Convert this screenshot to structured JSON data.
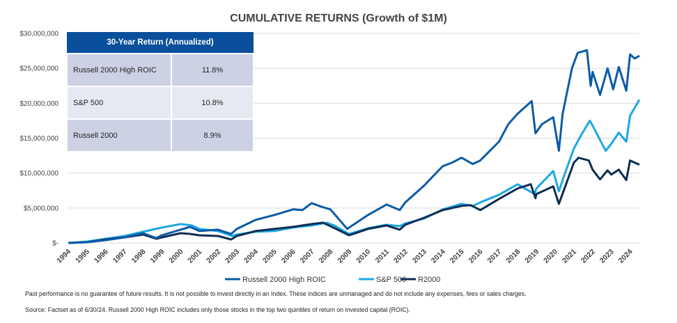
{
  "chart_data": {
    "type": "line",
    "title": "CUMULATIVE RETURNS (Growth of $1M)",
    "xlabel": "",
    "ylabel": "",
    "x_ticks": [
      "1994",
      "1995",
      "1996",
      "1997",
      "1998",
      "1999",
      "2000",
      "2001",
      "2002",
      "2003",
      "2004",
      "2005",
      "2006",
      "2007",
      "2008",
      "2009",
      "2010",
      "2011",
      "2012",
      "2013",
      "2014",
      "2015",
      "2016",
      "2017",
      "2018",
      "2019",
      "2020",
      "2021",
      "2022",
      "2023",
      "2024"
    ],
    "y_ticks": [
      {
        "value": 0,
        "label": "$-"
      },
      {
        "value": 5000000,
        "label": "$5,000,000"
      },
      {
        "value": 10000000,
        "label": "$10,000,000"
      },
      {
        "value": 15000000,
        "label": "$15,000,000"
      },
      {
        "value": 20000000,
        "label": "$20,000,000"
      },
      {
        "value": 25000000,
        "label": "$25,000,000"
      },
      {
        "value": 30000000,
        "label": "$30,000,000"
      }
    ],
    "ylim": [
      0,
      30000000
    ],
    "xlim": [
      1994,
      2024.5
    ],
    "grid": true,
    "legend_position": "bottom",
    "series": [
      {
        "name": "Russell 2000 High ROIC",
        "color": "#0b5aa5",
        "points": [
          [
            1994,
            0
          ],
          [
            1995,
            100000
          ],
          [
            1996,
            400000
          ],
          [
            1997,
            800000
          ],
          [
            1998,
            1400000
          ],
          [
            1998.7,
            700000
          ],
          [
            1999,
            1100000
          ],
          [
            2000,
            1900000
          ],
          [
            2000.5,
            2300000
          ],
          [
            2001,
            1700000
          ],
          [
            2002,
            1900000
          ],
          [
            2002.7,
            1300000
          ],
          [
            2003,
            2000000
          ],
          [
            2004,
            3300000
          ],
          [
            2005,
            4000000
          ],
          [
            2006,
            4800000
          ],
          [
            2006.5,
            4700000
          ],
          [
            2007,
            5700000
          ],
          [
            2007.5,
            5200000
          ],
          [
            2008,
            4800000
          ],
          [
            2008.9,
            2000000
          ],
          [
            2009,
            2200000
          ],
          [
            2010,
            4000000
          ],
          [
            2011,
            5500000
          ],
          [
            2011.7,
            4700000
          ],
          [
            2012,
            5800000
          ],
          [
            2013,
            8200000
          ],
          [
            2014,
            11000000
          ],
          [
            2014.5,
            11500000
          ],
          [
            2015,
            12200000
          ],
          [
            2015.6,
            11300000
          ],
          [
            2016,
            11800000
          ],
          [
            2017,
            14500000
          ],
          [
            2017.5,
            17000000
          ],
          [
            2018,
            18500000
          ],
          [
            2018.75,
            20300000
          ],
          [
            2018.95,
            15700000
          ],
          [
            2019.3,
            17000000
          ],
          [
            2019.9,
            18000000
          ],
          [
            2020.2,
            13200000
          ],
          [
            2020.4,
            18500000
          ],
          [
            2020.9,
            25000000
          ],
          [
            2021.2,
            27200000
          ],
          [
            2021.7,
            27600000
          ],
          [
            2021.9,
            22500000
          ],
          [
            2022,
            24500000
          ],
          [
            2022.4,
            21200000
          ],
          [
            2022.8,
            25000000
          ],
          [
            2023.1,
            22000000
          ],
          [
            2023.4,
            25200000
          ],
          [
            2023.8,
            21800000
          ],
          [
            2024,
            27000000
          ],
          [
            2024.25,
            26400000
          ],
          [
            2024.5,
            26800000
          ]
        ]
      },
      {
        "name": "S&P 500",
        "color": "#1ca7e6",
        "points": [
          [
            1994,
            0
          ],
          [
            1995,
            200000
          ],
          [
            1996,
            600000
          ],
          [
            1997,
            1000000
          ],
          [
            1998,
            1600000
          ],
          [
            1999,
            2200000
          ],
          [
            2000,
            2700000
          ],
          [
            2000.6,
            2500000
          ],
          [
            2001,
            2000000
          ],
          [
            2002,
            1700000
          ],
          [
            2002.75,
            1000000
          ],
          [
            2003,
            1200000
          ],
          [
            2004,
            1600000
          ],
          [
            2005,
            1700000
          ],
          [
            2006,
            2200000
          ],
          [
            2007,
            2500000
          ],
          [
            2007.8,
            2900000
          ],
          [
            2008.2,
            2500000
          ],
          [
            2009,
            1300000
          ],
          [
            2010,
            2100000
          ],
          [
            2011,
            2600000
          ],
          [
            2011.7,
            2400000
          ],
          [
            2012,
            2800000
          ],
          [
            2013,
            3500000
          ],
          [
            2014,
            4800000
          ],
          [
            2015,
            5600000
          ],
          [
            2015.6,
            5300000
          ],
          [
            2016,
            5800000
          ],
          [
            2017,
            6900000
          ],
          [
            2018,
            8400000
          ],
          [
            2018.9,
            7000000
          ],
          [
            2019,
            7800000
          ],
          [
            2019.9,
            10300000
          ],
          [
            2020.2,
            7400000
          ],
          [
            2020.5,
            9800000
          ],
          [
            2021,
            13500000
          ],
          [
            2021.4,
            15500000
          ],
          [
            2021.85,
            17500000
          ],
          [
            2022,
            16800000
          ],
          [
            2022.7,
            13200000
          ],
          [
            2023,
            14200000
          ],
          [
            2023.4,
            15800000
          ],
          [
            2023.8,
            14500000
          ],
          [
            2024,
            18200000
          ],
          [
            2024.5,
            20500000
          ]
        ]
      },
      {
        "name": "R2000",
        "color": "#0d2d52",
        "points": [
          [
            1994,
            0
          ],
          [
            1995,
            100000
          ],
          [
            1996,
            500000
          ],
          [
            1997,
            800000
          ],
          [
            1998,
            1200000
          ],
          [
            1998.7,
            600000
          ],
          [
            1999,
            800000
          ],
          [
            2000,
            1400000
          ],
          [
            2000.5,
            1300000
          ],
          [
            2001,
            1100000
          ],
          [
            2002,
            1000000
          ],
          [
            2002.7,
            500000
          ],
          [
            2003,
            1000000
          ],
          [
            2004,
            1700000
          ],
          [
            2005,
            2000000
          ],
          [
            2006,
            2300000
          ],
          [
            2007,
            2700000
          ],
          [
            2007.6,
            2900000
          ],
          [
            2008,
            2400000
          ],
          [
            2009,
            1100000
          ],
          [
            2010,
            2000000
          ],
          [
            2011,
            2500000
          ],
          [
            2011.7,
            1900000
          ],
          [
            2012,
            2600000
          ],
          [
            2013,
            3600000
          ],
          [
            2014,
            4700000
          ],
          [
            2015,
            5300000
          ],
          [
            2015.5,
            5400000
          ],
          [
            2016,
            4700000
          ],
          [
            2017,
            6300000
          ],
          [
            2018,
            7800000
          ],
          [
            2018.7,
            8400000
          ],
          [
            2018.95,
            6400000
          ],
          [
            2019,
            7000000
          ],
          [
            2019.9,
            8100000
          ],
          [
            2020.2,
            5600000
          ],
          [
            2020.6,
            8500000
          ],
          [
            2021,
            11500000
          ],
          [
            2021.25,
            12200000
          ],
          [
            2021.8,
            11800000
          ],
          [
            2022,
            10500000
          ],
          [
            2022.4,
            9100000
          ],
          [
            2022.8,
            10400000
          ],
          [
            2023,
            9800000
          ],
          [
            2023.4,
            10500000
          ],
          [
            2023.8,
            9000000
          ],
          [
            2024,
            11800000
          ],
          [
            2024.5,
            11200000
          ]
        ]
      }
    ]
  },
  "table": {
    "header": "30-Year Return (Annualized)",
    "rows": [
      {
        "name": "Russell 2000 High ROIC",
        "value": "11.8%"
      },
      {
        "name": "S&P 500",
        "value": "10.8%"
      },
      {
        "name": "Russell 2000",
        "value": "8.9%"
      }
    ]
  },
  "footnotes": {
    "disclaimer": "Past performance is no guarantee of future results. It is not possible to invest directly in an Index. These indices are unmanaged and do not include any expenses, fees or sales charges.",
    "source": "Source: Factset as of 6/30/24. Russell 2000 High ROIC includes only those stocks in the top two quintiles of return on invested capital (ROIC)."
  }
}
